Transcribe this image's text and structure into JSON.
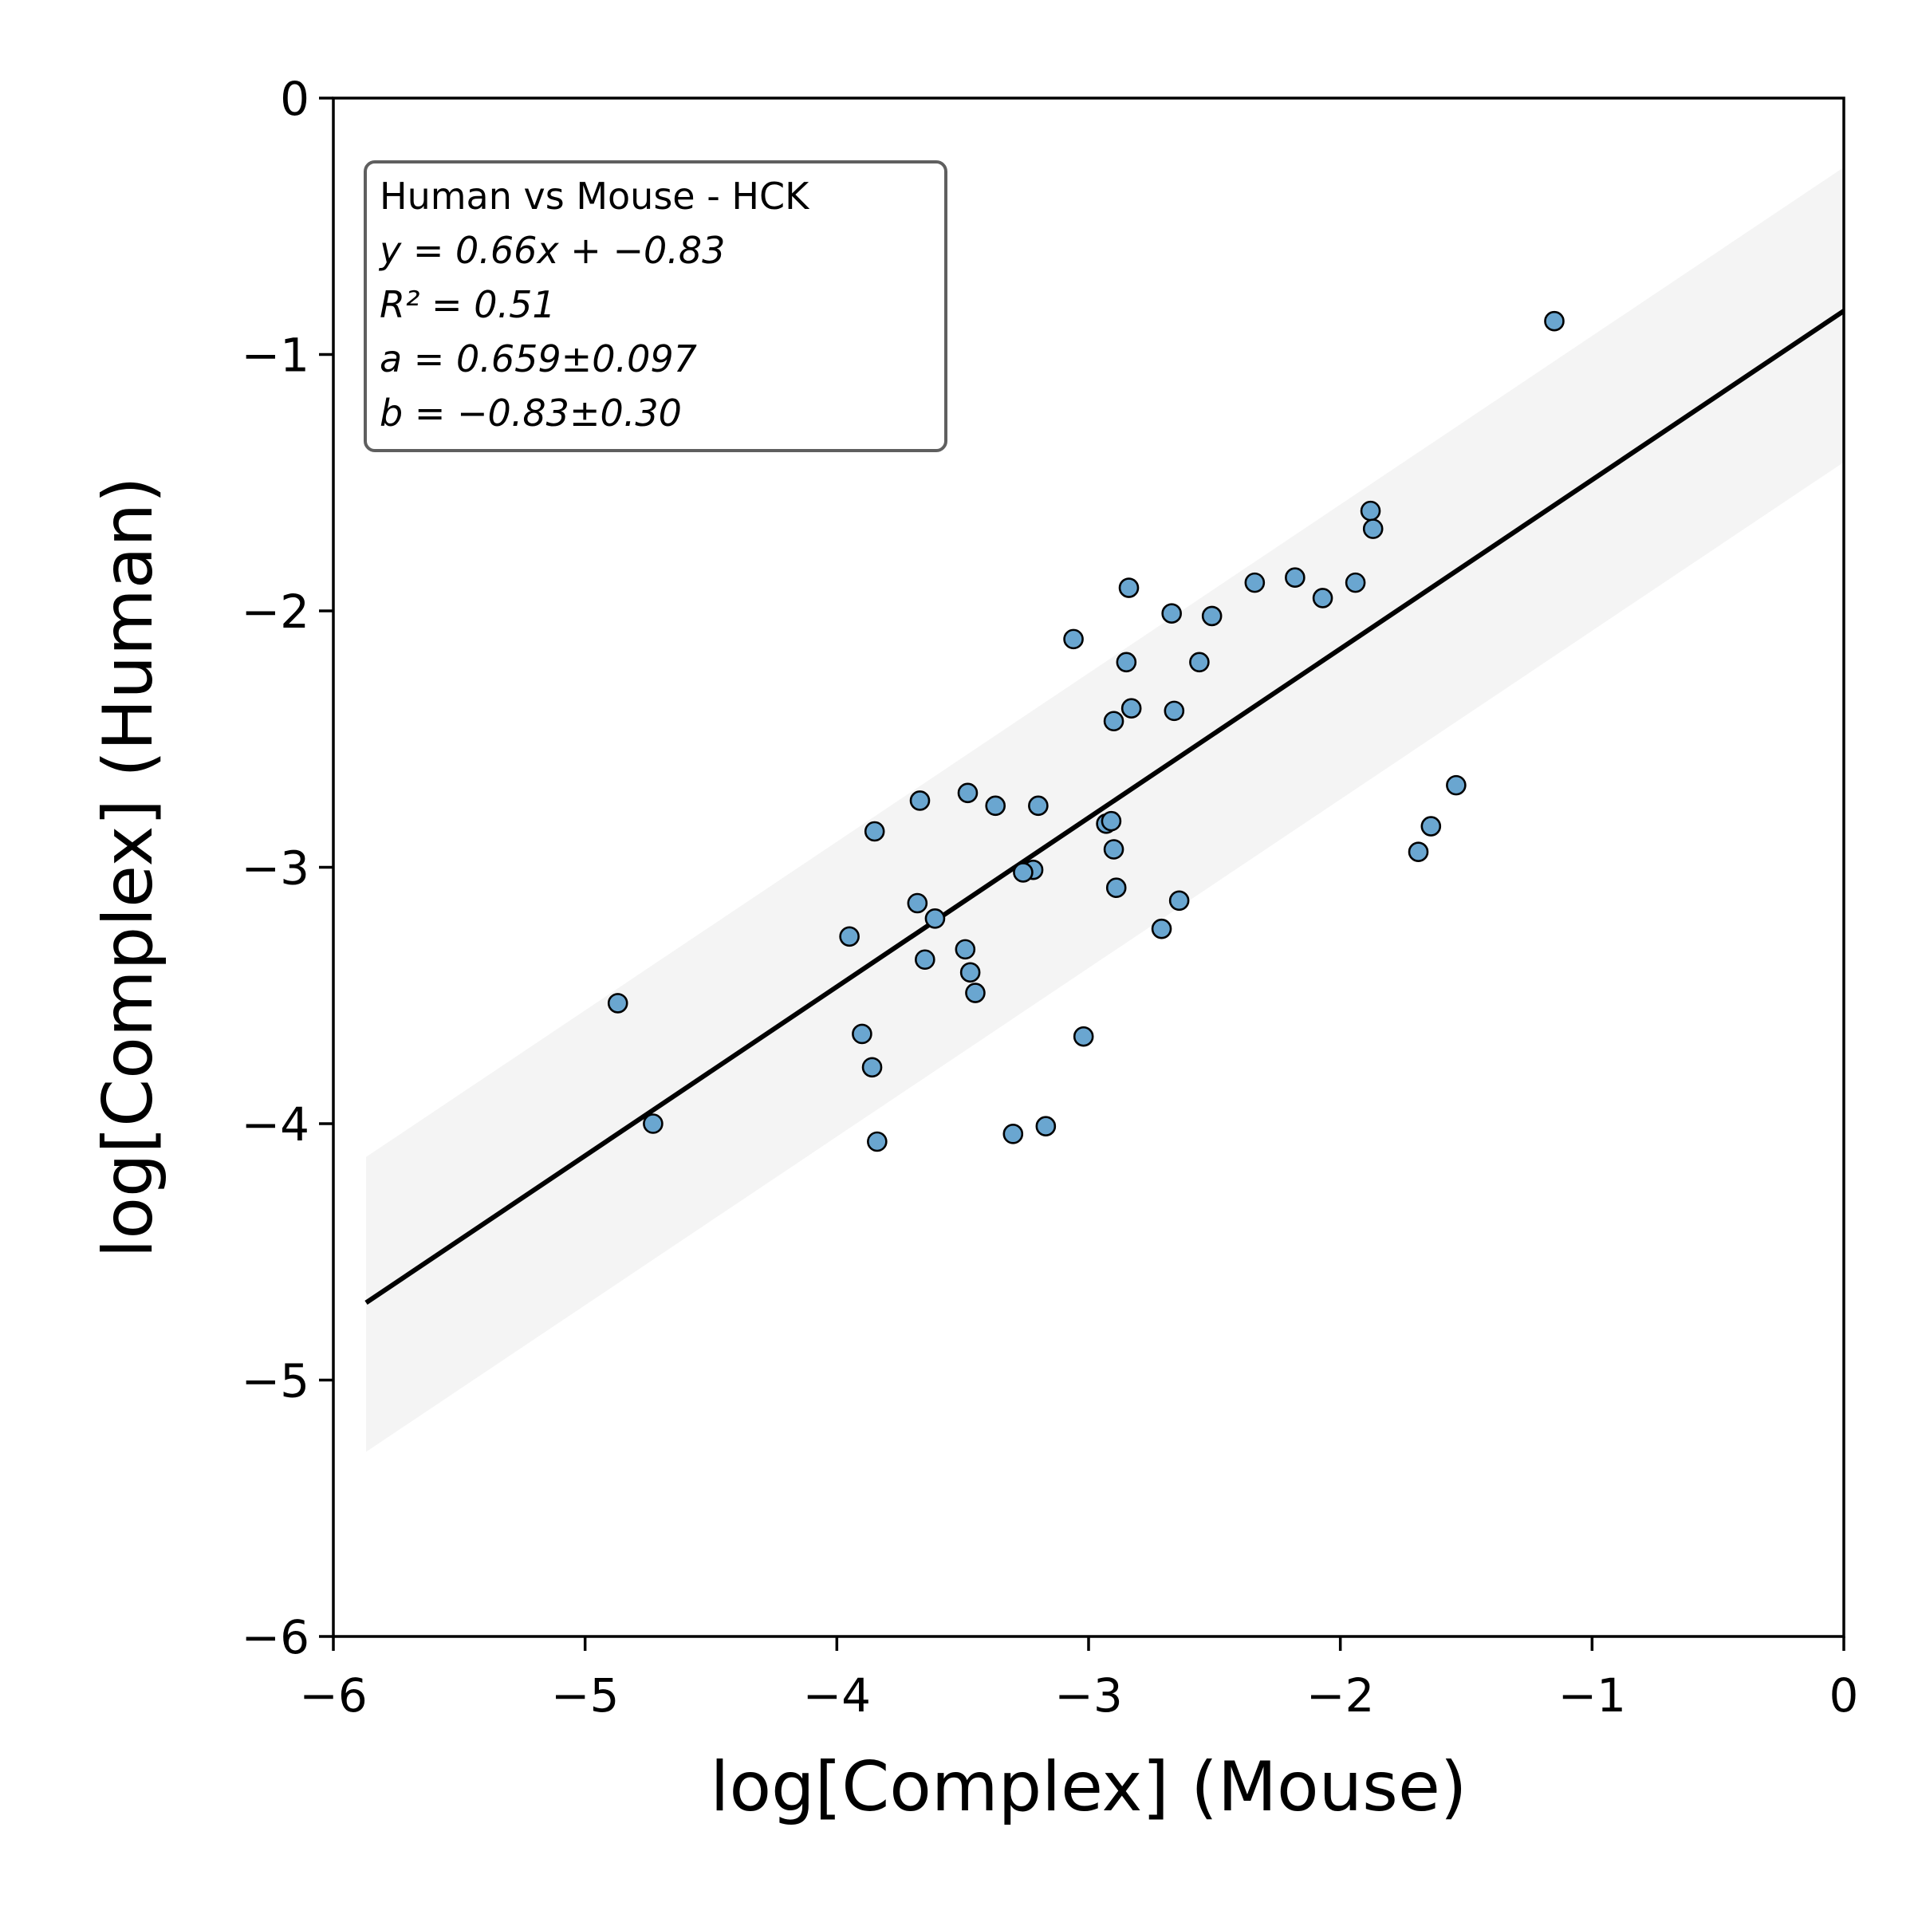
{
  "chart_data": {
    "type": "scatter",
    "title": "",
    "xlabel": "log[Complex] (Mouse)",
    "ylabel": "log[Complex] (Human)",
    "xlim": [
      -6,
      0
    ],
    "ylim": [
      -6,
      0
    ],
    "xticks": [
      -6,
      -5,
      -4,
      -3,
      -2,
      -1,
      0
    ],
    "yticks": [
      -6,
      -5,
      -4,
      -3,
      -2,
      -1,
      0
    ],
    "xtick_labels": [
      "−6",
      "−5",
      "−4",
      "−3",
      "−2",
      "−1",
      "0"
    ],
    "ytick_labels": [
      "−6",
      "−5",
      "−4",
      "−3",
      "−2",
      "−1",
      "0"
    ],
    "grid": false,
    "legend": "none",
    "point_color": "#6aa6d0",
    "point_edge_color": "#000000",
    "series": [
      {
        "points": [
          [
            -1.15,
            -0.87
          ],
          [
            -1.88,
            -1.61
          ],
          [
            -1.87,
            -1.68
          ],
          [
            -1.94,
            -1.89
          ],
          [
            -2.07,
            -1.95
          ],
          [
            -2.18,
            -1.87
          ],
          [
            -2.34,
            -1.89
          ],
          [
            -2.51,
            -2.02
          ],
          [
            -2.56,
            -2.2
          ],
          [
            -2.67,
            -2.01
          ],
          [
            -2.66,
            -2.39
          ],
          [
            -2.84,
            -1.91
          ],
          [
            -2.85,
            -2.2
          ],
          [
            -2.83,
            -2.38
          ],
          [
            -3.06,
            -2.11
          ],
          [
            -2.9,
            -2.43
          ],
          [
            -2.93,
            -2.83
          ],
          [
            -2.91,
            -2.82
          ],
          [
            -2.9,
            -2.93
          ],
          [
            -2.89,
            -3.08
          ],
          [
            -2.64,
            -3.13
          ],
          [
            -2.71,
            -3.24
          ],
          [
            -3.02,
            -3.66
          ],
          [
            -3.17,
            -4.01
          ],
          [
            -3.3,
            -4.04
          ],
          [
            -3.2,
            -2.76
          ],
          [
            -3.37,
            -2.76
          ],
          [
            -3.48,
            -2.71
          ],
          [
            -3.22,
            -3.01
          ],
          [
            -3.26,
            -3.02
          ],
          [
            -3.49,
            -3.32
          ],
          [
            -3.47,
            -3.41
          ],
          [
            -3.45,
            -3.49
          ],
          [
            -3.61,
            -3.2
          ],
          [
            -3.68,
            -3.14
          ],
          [
            -3.65,
            -3.36
          ],
          [
            -3.67,
            -2.74
          ],
          [
            -3.85,
            -2.86
          ],
          [
            -3.95,
            -3.27
          ],
          [
            -3.9,
            -3.65
          ],
          [
            -3.86,
            -3.78
          ],
          [
            -3.84,
            -4.07
          ],
          [
            -4.87,
            -3.53
          ],
          [
            -4.73,
            -4.0
          ],
          [
            -1.54,
            -2.68
          ],
          [
            -1.64,
            -2.84
          ],
          [
            -1.69,
            -2.94
          ]
        ]
      }
    ],
    "fit": {
      "slope": 0.659,
      "intercept": -0.83,
      "x_range": [
        -5.87,
        0
      ],
      "band_upper": [
        [
          -5.87,
          -4.13
        ],
        [
          0,
          -0.27
        ]
      ],
      "band_lower": [
        [
          -5.87,
          -5.28
        ],
        [
          0,
          -1.42
        ]
      ],
      "line_color": "#000000",
      "band_color": "#efefef"
    },
    "annotation": {
      "position": "top-left",
      "title": "Human vs Mouse - HCK",
      "equation": "y = 0.66x + −0.83",
      "r2": "R² = 0.51",
      "a": "a = 0.659±0.097",
      "b": "b = −0.83±0.30"
    }
  }
}
